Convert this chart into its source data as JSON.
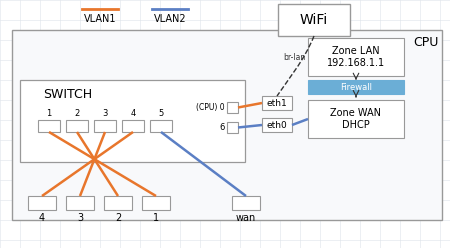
{
  "bg_color": "#f5f7fa",
  "fig_bg": "#ffffff",
  "orange": "#e8762c",
  "blue": "#5b7fc4",
  "dark": "#333333",
  "gray": "#999999",
  "box_fill": "#ffffff",
  "box_edge": "#999999",
  "firewall_fill": "#6baed6",
  "firewall_text": "#ffffff",
  "vlan1_label": "VLAN1",
  "vlan2_label": "VLAN2",
  "wifi_label": "WiFi",
  "switch_label": "SWITCH",
  "cpu_label": "CPU",
  "br_lan_label": "br-lan",
  "zone_lan_label": "Zone LAN\n192.168.1.1",
  "firewall_label": "Firewall",
  "zone_wan_label": "Zone WAN\nDHCP",
  "cpu_port_label": "(CPU) 0",
  "port6_label": "6",
  "eth1_label": "eth1",
  "eth0_label": "eth0",
  "port_labels": [
    "1",
    "2",
    "3",
    "4",
    "5"
  ],
  "device_labels": [
    "4",
    "3",
    "2",
    "1",
    "wan"
  ]
}
